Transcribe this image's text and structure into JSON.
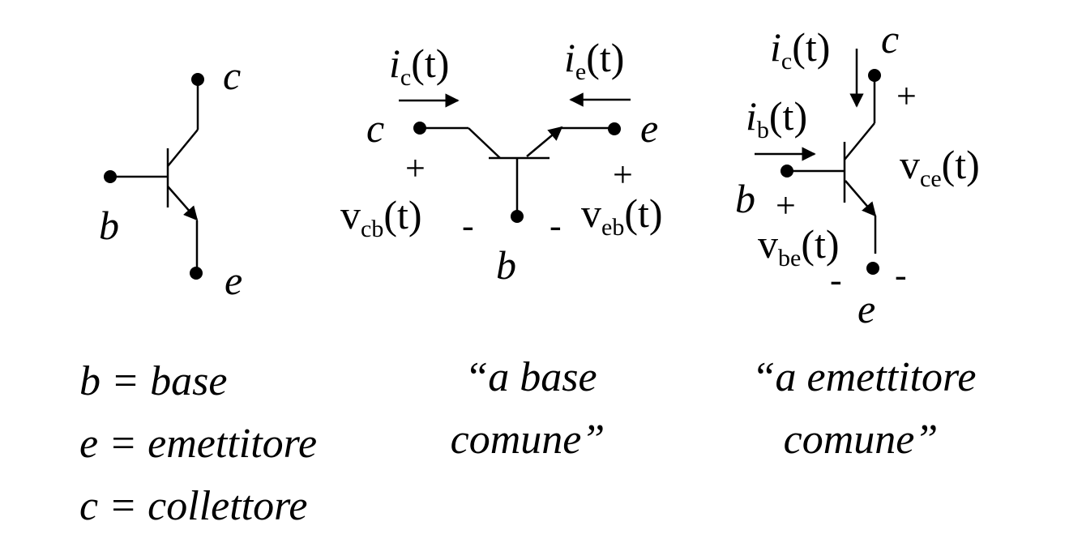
{
  "symbol": {
    "collector": "c",
    "base": "b",
    "emitter": "e"
  },
  "common_base": {
    "ic_main": "i",
    "ic_sub": "c",
    "ic_t": "(t)",
    "ie_main": "i",
    "ie_sub": "e",
    "ie_t": "(t)",
    "c_label": "c",
    "e_label": "e",
    "b_label": "b",
    "plus_left": "+",
    "plus_right": "+",
    "minus_left": "-",
    "minus_right": "-",
    "vcb_main": "v",
    "vcb_sub": "cb",
    "vcb_t": "(t)",
    "veb_main": "v",
    "veb_sub": "eb",
    "veb_t": "(t)",
    "caption_line1": "“a base",
    "caption_line2": "comune”"
  },
  "common_emitter": {
    "ic_main": "i",
    "ic_sub": "c",
    "ic_t": "(t)",
    "ib_main": "i",
    "ib_sub": "b",
    "ib_t": "(t)",
    "c_label": "c",
    "b_label": "b",
    "e_label": "e",
    "plus_ce": "+",
    "plus_be": "+",
    "minus_be": "-",
    "minus_ce": "-",
    "vce_main": "v",
    "vce_sub": "ce",
    "vce_t": "(t)",
    "vbe_main": "v",
    "vbe_sub": "be",
    "vbe_t": "(t)",
    "caption_line1": "“a emettitore",
    "caption_line2": "comune”"
  },
  "legend": {
    "line1": "b = base",
    "line2": "e = emettitore",
    "line3": "c = collettore"
  }
}
